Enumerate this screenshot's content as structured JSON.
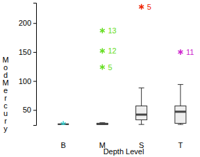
{
  "chart_data": {
    "type": "box",
    "x_label": "Depth Level",
    "y_label": "ModMercury",
    "categories": [
      "B",
      "M",
      "S",
      "T"
    ],
    "ylim": [
      24,
      235
    ],
    "yticks": [
      50,
      100,
      150,
      200
    ],
    "boxes": [
      {
        "min": 25,
        "q1": 25,
        "median": 25,
        "q3": 25,
        "max": 25,
        "color": "#33cccc",
        "outliers": [
          {
            "value": 26
          }
        ]
      },
      {
        "min": 24,
        "q1": 25,
        "median": 26,
        "q3": 27,
        "max": 28,
        "color": "#66dd22",
        "outliers": [
          {
            "value": 187,
            "label": "13"
          },
          {
            "value": 152,
            "label": "12"
          },
          {
            "value": 124,
            "label": "5"
          }
        ]
      },
      {
        "min": 25,
        "q1": 33,
        "median": 42,
        "q3": 57,
        "max": 88,
        "color": "#ee2200",
        "outliers": [
          {
            "value": 228,
            "label": "5"
          }
        ]
      },
      {
        "min": 25,
        "q1": 27,
        "median": 47,
        "q3": 57,
        "max": 94,
        "color": "#cc22cc",
        "outliers": [
          {
            "value": 150,
            "label": "11"
          }
        ]
      }
    ]
  }
}
